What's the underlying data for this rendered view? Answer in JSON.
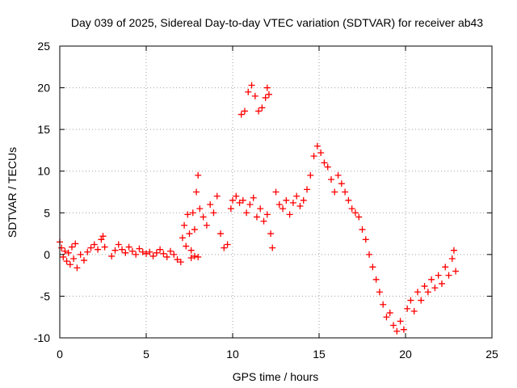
{
  "chart_data": {
    "type": "scatter",
    "title": "Day 039 of 2025, Sidereal Day-to-day VTEC variation (SDTVAR) for receiver ab43",
    "xlabel": "GPS time / hours",
    "ylabel": "SDTVAR / TECUs",
    "xlim": [
      0,
      25
    ],
    "ylim": [
      -10,
      25
    ],
    "x_ticks": [
      0,
      5,
      10,
      15,
      20,
      25
    ],
    "y_ticks": [
      -10,
      -5,
      0,
      5,
      10,
      15,
      20,
      25
    ],
    "x_tick_labels": [
      "0",
      "5",
      "10",
      "15",
      "20",
      "25"
    ],
    "y_tick_labels": [
      "-10",
      "-5",
      "0",
      "5",
      "10",
      "15",
      "20",
      "25"
    ],
    "grid": true,
    "marker": "+",
    "series": [
      {
        "name": "SDTVAR",
        "color": "#ff0000",
        "points": [
          [
            0.0,
            1.5
          ],
          [
            0.1,
            0.8
          ],
          [
            0.2,
            -0.3
          ],
          [
            0.3,
            0.4
          ],
          [
            0.4,
            -0.8
          ],
          [
            0.5,
            0.2
          ],
          [
            0.6,
            -1.2
          ],
          [
            0.7,
            0.9
          ],
          [
            0.8,
            -0.5
          ],
          [
            0.9,
            1.3
          ],
          [
            1.0,
            -1.6
          ],
          [
            1.2,
            0.0
          ],
          [
            1.4,
            -0.7
          ],
          [
            1.6,
            0.3
          ],
          [
            1.8,
            0.8
          ],
          [
            2.0,
            1.2
          ],
          [
            2.2,
            0.6
          ],
          [
            2.4,
            1.8
          ],
          [
            2.5,
            2.2
          ],
          [
            2.6,
            0.9
          ],
          [
            3.0,
            -0.2
          ],
          [
            3.2,
            0.5
          ],
          [
            3.4,
            1.2
          ],
          [
            3.6,
            0.6
          ],
          [
            3.8,
            0.2
          ],
          [
            4.0,
            0.9
          ],
          [
            4.2,
            0.4
          ],
          [
            4.4,
            0.0
          ],
          [
            4.6,
            0.7
          ],
          [
            4.8,
            0.3
          ],
          [
            5.0,
            0.1
          ],
          [
            5.2,
            0.3
          ],
          [
            5.4,
            -0.2
          ],
          [
            5.6,
            0.2
          ],
          [
            5.8,
            0.6
          ],
          [
            6.0,
            0.1
          ],
          [
            6.2,
            -0.3
          ],
          [
            6.4,
            0.4
          ],
          [
            6.6,
            0.0
          ],
          [
            6.8,
            -0.6
          ],
          [
            7.0,
            -0.9
          ],
          [
            7.1,
            2.0
          ],
          [
            7.2,
            3.5
          ],
          [
            7.3,
            1.0
          ],
          [
            7.4,
            4.8
          ],
          [
            7.5,
            2.5
          ],
          [
            7.6,
            0.5
          ],
          [
            7.7,
            5.0
          ],
          [
            7.8,
            3.0
          ],
          [
            7.9,
            7.5
          ],
          [
            8.0,
            9.5
          ],
          [
            7.6,
            -0.4
          ],
          [
            7.8,
            -0.2
          ],
          [
            8.0,
            -0.3
          ],
          [
            8.1,
            5.5
          ],
          [
            8.3,
            4.5
          ],
          [
            8.5,
            3.5
          ],
          [
            8.7,
            6.0
          ],
          [
            8.9,
            5.0
          ],
          [
            9.1,
            7.0
          ],
          [
            9.3,
            2.5
          ],
          [
            9.5,
            0.8
          ],
          [
            9.7,
            1.2
          ],
          [
            9.9,
            5.5
          ],
          [
            10.0,
            6.5
          ],
          [
            10.2,
            7.0
          ],
          [
            10.4,
            6.2
          ],
          [
            10.6,
            6.5
          ],
          [
            10.8,
            5.0
          ],
          [
            11.0,
            6.0
          ],
          [
            11.2,
            6.8
          ],
          [
            10.5,
            16.8
          ],
          [
            10.7,
            17.2
          ],
          [
            10.9,
            19.5
          ],
          [
            11.1,
            20.3
          ],
          [
            11.3,
            19.0
          ],
          [
            11.5,
            17.2
          ],
          [
            11.7,
            17.6
          ],
          [
            11.9,
            18.8
          ],
          [
            12.0,
            20.0
          ],
          [
            12.1,
            19.2
          ],
          [
            11.4,
            4.5
          ],
          [
            11.6,
            5.5
          ],
          [
            11.8,
            4.0
          ],
          [
            12.0,
            4.8
          ],
          [
            12.2,
            2.5
          ],
          [
            12.3,
            0.8
          ],
          [
            12.5,
            7.5
          ],
          [
            12.7,
            6.0
          ],
          [
            12.9,
            5.5
          ],
          [
            13.1,
            6.5
          ],
          [
            13.3,
            4.8
          ],
          [
            13.5,
            6.2
          ],
          [
            13.7,
            7.0
          ],
          [
            13.9,
            5.8
          ],
          [
            14.1,
            6.5
          ],
          [
            14.3,
            7.8
          ],
          [
            14.5,
            9.5
          ],
          [
            14.7,
            11.8
          ],
          [
            14.9,
            13.0
          ],
          [
            15.1,
            12.2
          ],
          [
            15.3,
            11.0
          ],
          [
            15.5,
            10.5
          ],
          [
            15.7,
            9.0
          ],
          [
            15.9,
            7.5
          ],
          [
            16.1,
            9.5
          ],
          [
            16.3,
            8.5
          ],
          [
            16.5,
            7.5
          ],
          [
            16.7,
            6.5
          ],
          [
            16.9,
            5.5
          ],
          [
            17.1,
            5.0
          ],
          [
            17.3,
            4.5
          ],
          [
            17.5,
            3.0
          ],
          [
            17.7,
            1.8
          ],
          [
            17.9,
            0.0
          ],
          [
            18.1,
            -1.5
          ],
          [
            18.3,
            -3.0
          ],
          [
            18.5,
            -4.5
          ],
          [
            18.7,
            -6.0
          ],
          [
            18.9,
            -7.5
          ],
          [
            19.1,
            -7.0
          ],
          [
            19.3,
            -8.5
          ],
          [
            19.5,
            -9.2
          ],
          [
            19.7,
            -8.0
          ],
          [
            19.9,
            -9.0
          ],
          [
            20.1,
            -6.5
          ],
          [
            20.3,
            -5.5
          ],
          [
            20.5,
            -6.8
          ],
          [
            20.7,
            -4.5
          ],
          [
            20.9,
            -5.5
          ],
          [
            21.1,
            -3.8
          ],
          [
            21.3,
            -4.5
          ],
          [
            21.5,
            -3.0
          ],
          [
            21.7,
            -4.0
          ],
          [
            21.9,
            -2.5
          ],
          [
            22.1,
            -3.5
          ],
          [
            22.3,
            -1.5
          ],
          [
            22.5,
            -2.5
          ],
          [
            22.7,
            -0.5
          ],
          [
            22.8,
            0.5
          ],
          [
            22.9,
            -2.0
          ]
        ]
      }
    ]
  }
}
